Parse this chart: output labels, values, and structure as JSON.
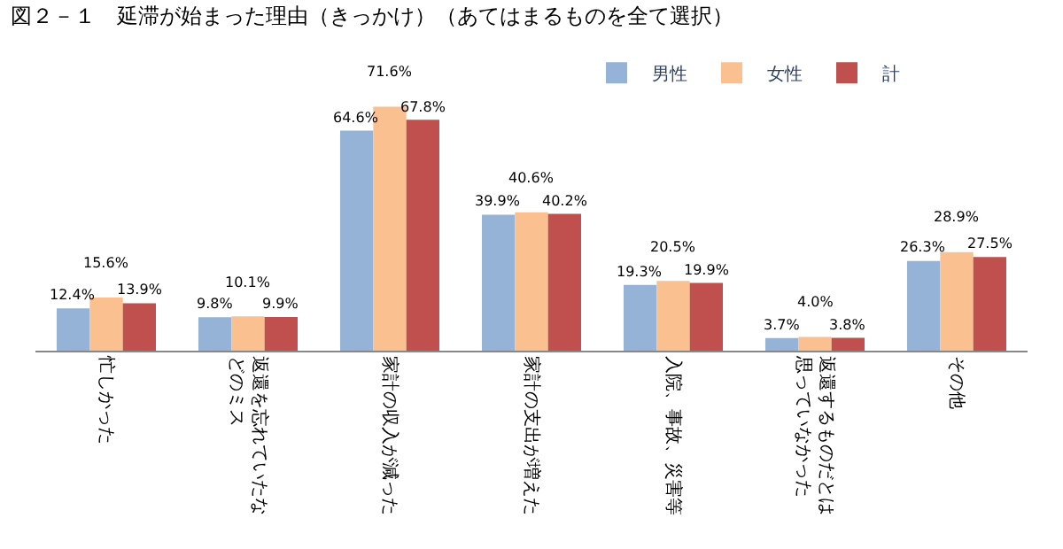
{
  "chart_data": {
    "type": "bar",
    "title": "図２－１　延滞が始まった理由（きっかけ）（あてはまるものを全て選択）",
    "categories": [
      "忙しかった",
      "返還を忘れていたなどのミス",
      "家計の収入が減った",
      "家計の支出が増えた",
      "入院、事故、災害等",
      "返還するものだとは思っていなかった",
      "その他"
    ],
    "series": [
      {
        "name": "男性",
        "color": "#95b3d7",
        "values": [
          12.4,
          9.8,
          64.6,
          39.9,
          19.3,
          3.7,
          26.3
        ],
        "value_labels": [
          "12.4%",
          "9.8%",
          "64.6%",
          "39.9%",
          "19.3%",
          "3.7%",
          "26.3%"
        ]
      },
      {
        "name": "女性",
        "color": "#fac090",
        "values": [
          15.6,
          10.1,
          71.6,
          40.6,
          20.5,
          4.0,
          28.9
        ],
        "value_labels": [
          "15.6%",
          "10.1%",
          "71.6%",
          "40.6%",
          "20.5%",
          "4.0%",
          "28.9%"
        ]
      },
      {
        "name": "計",
        "color": "#c0504d",
        "values": [
          13.9,
          9.9,
          67.8,
          40.2,
          19.9,
          3.8,
          27.5
        ],
        "value_labels": [
          "13.9%",
          "9.9%",
          "67.8%",
          "40.2%",
          "19.9%",
          "3.8%",
          "27.5%"
        ]
      }
    ],
    "legend": "top right"
  }
}
